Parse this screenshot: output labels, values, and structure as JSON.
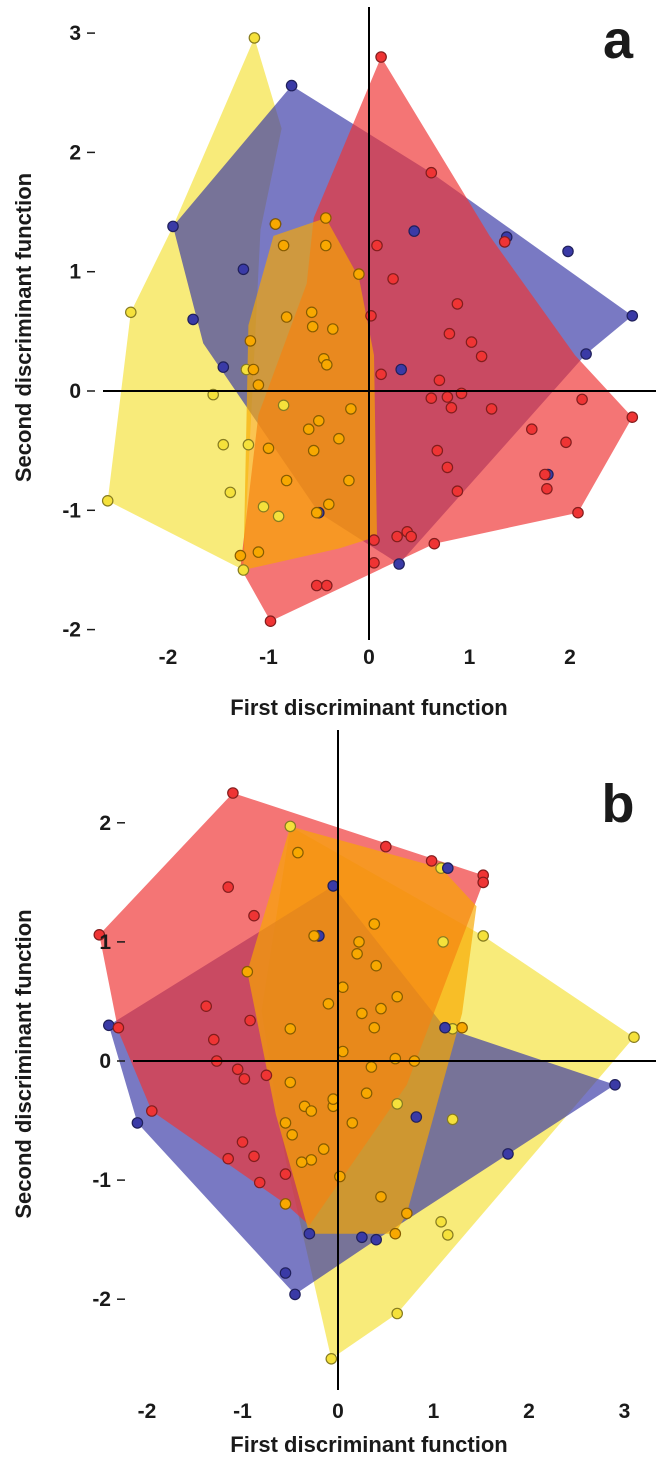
{
  "chart_data": [
    {
      "type": "scatter",
      "panel_label": "a",
      "xlabel": "First discriminant function",
      "ylabel": "Second discriminant function",
      "xlim": [
        -2.6,
        2.8
      ],
      "ylim": [
        -2.2,
        3.2
      ],
      "x_ticks": [
        "-2",
        "-1",
        "0",
        "1",
        "2"
      ],
      "y_ticks": [
        "-2",
        "-1",
        "0",
        "1",
        "2",
        "3"
      ],
      "grid": false,
      "legend": "none",
      "series": [
        {
          "color": "#f5e13b",
          "hull": [
            [
              -1.14,
              2.96
            ],
            [
              -0.87,
              2.2
            ],
            [
              -1.08,
              1.35
            ],
            [
              -1.25,
              -1.5
            ],
            [
              -2.6,
              -0.92
            ],
            [
              -2.37,
              0.66
            ],
            [
              -1.95,
              1.38
            ]
          ],
          "points": [
            [
              -1.14,
              2.96
            ],
            [
              -2.37,
              0.66
            ],
            [
              -2.6,
              -0.92
            ],
            [
              -1.25,
              -1.5
            ],
            [
              -1.55,
              -0.03
            ],
            [
              -1.45,
              -0.45
            ],
            [
              -1.38,
              -0.85
            ],
            [
              -1.22,
              0.18
            ],
            [
              -1.05,
              -0.97
            ],
            [
              -0.9,
              -1.05
            ],
            [
              -0.85,
              -0.12
            ],
            [
              -1.2,
              -0.45
            ]
          ]
        },
        {
          "color": "#3a3aa6",
          "hull": [
            [
              -0.77,
              2.56
            ],
            [
              0.62,
              1.83
            ],
            [
              2.62,
              0.63
            ],
            [
              2.16,
              0.31
            ],
            [
              0.3,
              -1.45
            ],
            [
              -0.5,
              -1.02
            ],
            [
              -1.65,
              0.4
            ],
            [
              -1.95,
              1.38
            ]
          ],
          "points": [
            [
              -0.77,
              2.56
            ],
            [
              1.37,
              1.29
            ],
            [
              1.98,
              1.17
            ],
            [
              2.62,
              0.63
            ],
            [
              2.16,
              0.31
            ],
            [
              -1.95,
              1.38
            ],
            [
              -1.75,
              0.6
            ],
            [
              -1.45,
              0.2
            ],
            [
              -1.25,
              1.02
            ],
            [
              -0.93,
              1.4
            ],
            [
              0.3,
              -1.45
            ],
            [
              -0.5,
              -1.02
            ],
            [
              0.45,
              1.34
            ],
            [
              0.32,
              0.18
            ],
            [
              1.78,
              -0.7
            ]
          ]
        },
        {
          "color": "#ef3434",
          "hull": [
            [
              0.12,
              2.8
            ],
            [
              1.2,
              1.3
            ],
            [
              2.05,
              0.3
            ],
            [
              2.62,
              -0.22
            ],
            [
              2.08,
              -1.02
            ],
            [
              0.65,
              -1.28
            ],
            [
              -0.98,
              -1.93
            ],
            [
              -1.28,
              -1.48
            ],
            [
              -1.1,
              -0.2
            ],
            [
              -0.62,
              0.9
            ],
            [
              -0.55,
              1.45
            ]
          ],
          "points": [
            [
              0.12,
              2.8
            ],
            [
              0.62,
              1.83
            ],
            [
              1.35,
              1.25
            ],
            [
              0.08,
              1.22
            ],
            [
              0.24,
              0.94
            ],
            [
              0.88,
              0.73
            ],
            [
              0.8,
              0.48
            ],
            [
              1.02,
              0.41
            ],
            [
              1.12,
              0.29
            ],
            [
              0.12,
              0.14
            ],
            [
              0.7,
              0.09
            ],
            [
              0.92,
              -0.02
            ],
            [
              0.78,
              -0.05
            ],
            [
              0.62,
              -0.06
            ],
            [
              0.82,
              -0.14
            ],
            [
              1.22,
              -0.15
            ],
            [
              1.62,
              -0.32
            ],
            [
              2.12,
              -0.07
            ],
            [
              2.62,
              -0.22
            ],
            [
              1.96,
              -0.43
            ],
            [
              0.68,
              -0.5
            ],
            [
              0.78,
              -0.64
            ],
            [
              1.75,
              -0.7
            ],
            [
              0.88,
              -0.84
            ],
            [
              1.77,
              -0.82
            ],
            [
              2.08,
              -1.02
            ],
            [
              0.38,
              -1.18
            ],
            [
              0.28,
              -1.22
            ],
            [
              0.42,
              -1.22
            ],
            [
              0.65,
              -1.28
            ],
            [
              0.05,
              -1.44
            ],
            [
              -0.52,
              -1.63
            ],
            [
              -0.42,
              -1.63
            ],
            [
              -0.98,
              -1.93
            ],
            [
              0.02,
              0.63
            ],
            [
              0.05,
              -1.25
            ]
          ]
        },
        {
          "color": "#f8a800",
          "hull": [
            [
              -0.43,
              1.45
            ],
            [
              -0.1,
              0.95
            ],
            [
              0.05,
              0.3
            ],
            [
              0.08,
              -1.22
            ],
            [
              -0.3,
              -1.32
            ],
            [
              -1.25,
              -1.5
            ],
            [
              -1.2,
              0.55
            ],
            [
              -0.95,
              1.3
            ]
          ],
          "points": [
            [
              -0.43,
              1.45
            ],
            [
              -0.93,
              1.4
            ],
            [
              -0.85,
              1.22
            ],
            [
              -0.43,
              1.22
            ],
            [
              -0.1,
              0.98
            ],
            [
              -0.57,
              0.66
            ],
            [
              -0.82,
              0.62
            ],
            [
              -0.36,
              0.52
            ],
            [
              -0.56,
              0.54
            ],
            [
              -1.18,
              0.42
            ],
            [
              -0.45,
              0.27
            ],
            [
              -0.42,
              0.22
            ],
            [
              -1.15,
              0.18
            ],
            [
              -1.1,
              0.05
            ],
            [
              -0.5,
              -0.25
            ],
            [
              -0.6,
              -0.32
            ],
            [
              -0.18,
              -0.15
            ],
            [
              -0.3,
              -0.4
            ],
            [
              -1.0,
              -0.48
            ],
            [
              -0.55,
              -0.5
            ],
            [
              -0.2,
              -0.75
            ],
            [
              -0.82,
              -0.75
            ],
            [
              -0.4,
              -0.95
            ],
            [
              -0.52,
              -1.02
            ],
            [
              -1.1,
              -1.35
            ],
            [
              -1.28,
              -1.38
            ]
          ]
        }
      ]
    },
    {
      "type": "scatter",
      "panel_label": "b",
      "xlabel": "First discriminant function",
      "ylabel": "Second discriminant function",
      "xlim": [
        -2.55,
        3.4
      ],
      "ylim": [
        -2.75,
        2.35
      ],
      "x_ticks": [
        "-2",
        "-1",
        "0",
        "1",
        "2",
        "3"
      ],
      "y_ticks": [
        "-2",
        "-1",
        "0",
        "1",
        "2"
      ],
      "grid": false,
      "legend": "none",
      "series": [
        {
          "color": "#f5e13b",
          "hull": [
            [
              -0.5,
              1.97
            ],
            [
              1.52,
              1.05
            ],
            [
              3.1,
              0.2
            ],
            [
              0.62,
              -2.12
            ],
            [
              -0.07,
              -2.5
            ],
            [
              -0.55,
              -0.82
            ],
            [
              -0.8,
              0.42
            ]
          ],
          "points": [
            [
              -0.5,
              1.97
            ],
            [
              1.08,
              1.62
            ],
            [
              1.52,
              1.05
            ],
            [
              3.1,
              0.2
            ],
            [
              1.2,
              0.27
            ],
            [
              1.2,
              -0.49
            ],
            [
              1.08,
              -1.35
            ],
            [
              1.15,
              -1.46
            ],
            [
              0.62,
              -2.12
            ],
            [
              -0.07,
              -2.5
            ],
            [
              1.1,
              1.0
            ],
            [
              0.62,
              -0.36
            ]
          ]
        },
        {
          "color": "#3a3aa6",
          "hull": [
            [
              -0.05,
              1.47
            ],
            [
              1.12,
              0.28
            ],
            [
              2.9,
              -0.2
            ],
            [
              0.4,
              -1.5
            ],
            [
              -0.45,
              -1.96
            ],
            [
              -2.1,
              -0.52
            ],
            [
              -2.4,
              0.3
            ]
          ],
          "points": [
            [
              -2.4,
              0.3
            ],
            [
              -2.1,
              -0.52
            ],
            [
              -0.55,
              -1.78
            ],
            [
              -0.45,
              -1.96
            ],
            [
              2.9,
              -0.2
            ],
            [
              1.78,
              -0.78
            ],
            [
              0.4,
              -1.5
            ],
            [
              -0.3,
              -1.45
            ],
            [
              1.12,
              0.28
            ],
            [
              0.82,
              -0.47
            ],
            [
              -0.05,
              1.47
            ],
            [
              0.25,
              -1.48
            ],
            [
              1.15,
              1.62
            ],
            [
              -0.2,
              1.05
            ]
          ]
        },
        {
          "color": "#ef3434",
          "hull": [
            [
              -1.1,
              2.25
            ],
            [
              1.52,
              1.56
            ],
            [
              1.52,
              1.5
            ],
            [
              0.72,
              -0.2
            ],
            [
              -0.3,
              -1.38
            ],
            [
              -0.55,
              -1.2
            ],
            [
              -1.95,
              -0.42
            ],
            [
              -2.3,
              0.25
            ],
            [
              -2.5,
              1.06
            ]
          ],
          "points": [
            [
              -1.1,
              2.25
            ],
            [
              0.5,
              1.8
            ],
            [
              0.98,
              1.68
            ],
            [
              1.52,
              1.56
            ],
            [
              1.52,
              1.5
            ],
            [
              -1.15,
              1.46
            ],
            [
              -0.88,
              1.22
            ],
            [
              -2.5,
              1.06
            ],
            [
              -2.3,
              0.28
            ],
            [
              -1.38,
              0.46
            ],
            [
              -1.3,
              0.18
            ],
            [
              -1.27,
              0.0
            ],
            [
              -1.05,
              -0.07
            ],
            [
              -0.98,
              -0.15
            ],
            [
              -0.92,
              0.34
            ],
            [
              -0.75,
              -0.12
            ],
            [
              -1.0,
              -0.68
            ],
            [
              -1.15,
              -0.82
            ],
            [
              -0.88,
              -0.8
            ],
            [
              -0.82,
              -1.02
            ],
            [
              -0.55,
              -0.95
            ],
            [
              -1.95,
              -0.42
            ]
          ]
        },
        {
          "color": "#f8a800",
          "hull": [
            [
              -0.5,
              1.97
            ],
            [
              1.08,
              1.62
            ],
            [
              1.45,
              1.3
            ],
            [
              1.3,
              0.4
            ],
            [
              0.72,
              -1.28
            ],
            [
              0.6,
              -1.45
            ],
            [
              -0.3,
              -1.45
            ],
            [
              -0.65,
              -0.45
            ],
            [
              -0.95,
              0.75
            ]
          ],
          "points": [
            [
              -0.42,
              1.75
            ],
            [
              -0.25,
              1.05
            ],
            [
              -0.5,
              0.27
            ],
            [
              0.38,
              1.15
            ],
            [
              0.22,
              1.0
            ],
            [
              0.4,
              0.8
            ],
            [
              0.2,
              0.9
            ],
            [
              0.62,
              0.54
            ],
            [
              0.05,
              0.62
            ],
            [
              0.45,
              0.44
            ],
            [
              -0.1,
              0.48
            ],
            [
              0.25,
              0.4
            ],
            [
              0.38,
              0.28
            ],
            [
              0.05,
              0.08
            ],
            [
              1.3,
              0.28
            ],
            [
              0.6,
              0.02
            ],
            [
              0.35,
              -0.05
            ],
            [
              0.8,
              0.0
            ],
            [
              -0.5,
              -0.18
            ],
            [
              -0.35,
              -0.38
            ],
            [
              -0.28,
              -0.42
            ],
            [
              0.3,
              -0.27
            ],
            [
              -0.05,
              -0.38
            ],
            [
              0.15,
              -0.52
            ],
            [
              -0.05,
              -0.32
            ],
            [
              -0.55,
              -0.52
            ],
            [
              -0.48,
              -0.62
            ],
            [
              -0.15,
              -0.74
            ],
            [
              -0.28,
              -0.83
            ],
            [
              -0.38,
              -0.85
            ],
            [
              0.02,
              -0.97
            ],
            [
              0.45,
              -1.14
            ],
            [
              0.72,
              -1.28
            ],
            [
              0.6,
              -1.45
            ],
            [
              -0.55,
              -1.2
            ],
            [
              -0.95,
              0.75
            ]
          ]
        }
      ]
    }
  ]
}
